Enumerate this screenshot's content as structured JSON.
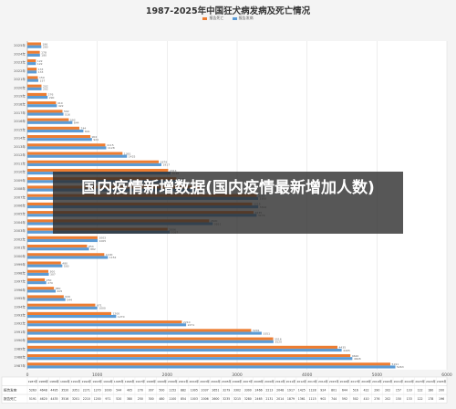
{
  "page": {
    "background": "#f4f4f4"
  },
  "legend": {
    "cases_label": "报告发病",
    "deaths_label": "报告死亡"
  },
  "overlay": {
    "text": "国内疫情新增数据(国内疫情最新增加人数)"
  },
  "table": {
    "row_cases": "报告发病",
    "row_deaths": "报告死亡"
  },
  "chart_data": {
    "type": "bar",
    "orientation": "horizontal",
    "title": "1987-2025年中国狂犬病发病及死亡情况",
    "xlim": [
      0,
      6000
    ],
    "x_ticks": [
      "0",
      "1000",
      "2000",
      "3000",
      "4000",
      "5000",
      "6000"
    ],
    "grid": true,
    "legend_position": "top",
    "colors": {
      "cases": "#5b9bd5",
      "deaths": "#ed7d31"
    },
    "categories": [
      "1987年",
      "1988年",
      "1989年",
      "1990年",
      "1991年",
      "1992年",
      "1993年",
      "1994年",
      "1995年",
      "1996年",
      "1997年",
      "1998年",
      "1999年",
      "2000年",
      "2001年",
      "2002年",
      "2003年",
      "2004年",
      "2005年",
      "2006年",
      "2007年",
      "2008年",
      "2009年",
      "2010年",
      "2011年",
      "2012年",
      "2013年",
      "2014年",
      "2015年",
      "2016年",
      "2017年",
      "2018年",
      "2019年",
      "2020年",
      "2021年",
      "2022年",
      "2023年",
      "2024年",
      "2025年"
    ],
    "series": [
      {
        "name": "报告发病",
        "key": "cases",
        "values": [
          5263,
          4648,
          4495,
          3520,
          3351,
          2271,
          1270,
          1000,
          544,
          405,
          270,
          307,
          500,
          1152,
          882,
          1005,
          2037,
          2651,
          3279,
          3302,
          3300,
          2466,
          2213,
          2048,
          1917,
          1425,
          1128,
          924,
          801,
          644,
          516,
          422,
          290,
          202,
          157,
          133,
          122,
          180,
          200
        ]
      },
      {
        "name": "报告死亡",
        "key": "deaths",
        "values": [
          5191,
          4620,
          4435,
          3516,
          3201,
          2210,
          1200,
          971,
          520,
          380,
          250,
          300,
          480,
          1100,
          854,
          1003,
          2006,
          2600,
          3235,
          3215,
          3280,
          2465,
          2131,
          2014,
          1879,
          1361,
          1115,
          902,
          744,
          592,
          502,
          410,
          276,
          202,
          150,
          133,
          122,
          178,
          196
        ]
      }
    ]
  }
}
